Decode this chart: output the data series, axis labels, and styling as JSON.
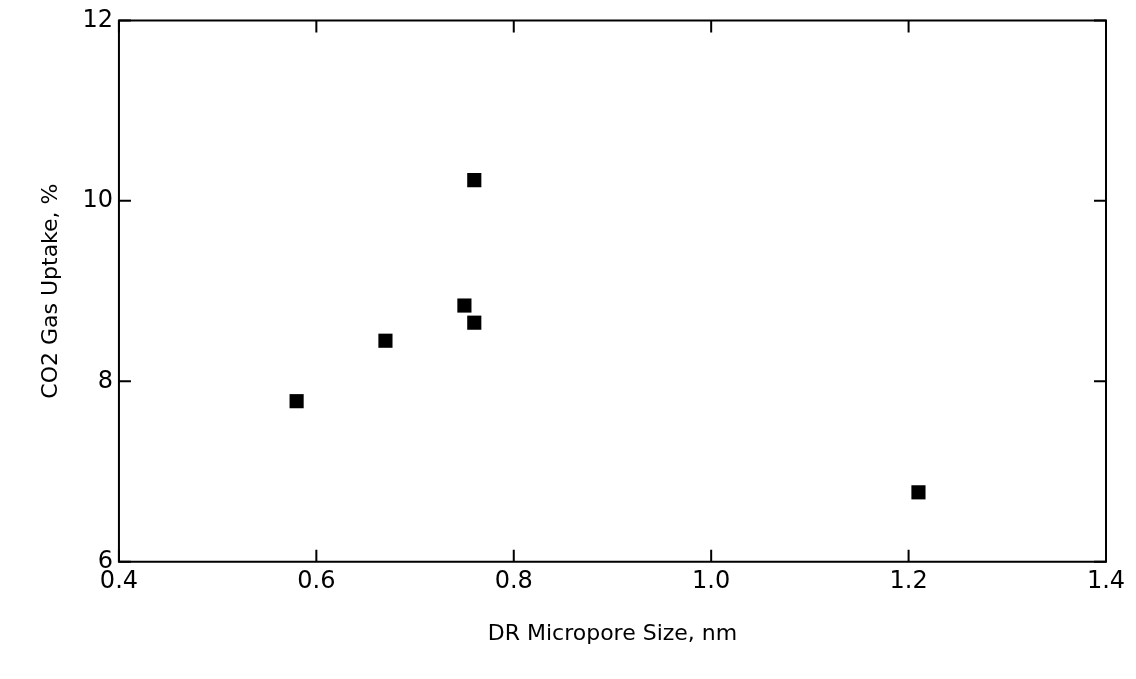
{
  "chart_data": {
    "type": "scatter",
    "xlabel": "DR Micropore Size, nm",
    "ylabel": "CO2 Gas Uptake, %",
    "x": [
      0.58,
      0.67,
      0.75,
      0.76,
      0.76,
      1.21
    ],
    "series": [
      {
        "color": "#000000",
        "values": [
          7.78,
          8.45,
          8.84,
          8.65,
          10.23,
          6.77
        ]
      }
    ],
    "xlim": [
      0.4,
      1.4
    ],
    "xticks": [
      {
        "value": 0.4,
        "label": "0.4"
      },
      {
        "value": 0.6,
        "label": "0.6"
      },
      {
        "value": 0.8,
        "label": "0.8"
      },
      {
        "value": 1.0,
        "label": "1.0"
      },
      {
        "value": 1.2,
        "label": "1.2"
      },
      {
        "value": 1.4,
        "label": "1.4"
      }
    ],
    "ylim": [
      6,
      12
    ],
    "yticks": [
      6,
      8,
      10,
      12
    ],
    "grid": false,
    "legend": false,
    "marker": "square"
  }
}
